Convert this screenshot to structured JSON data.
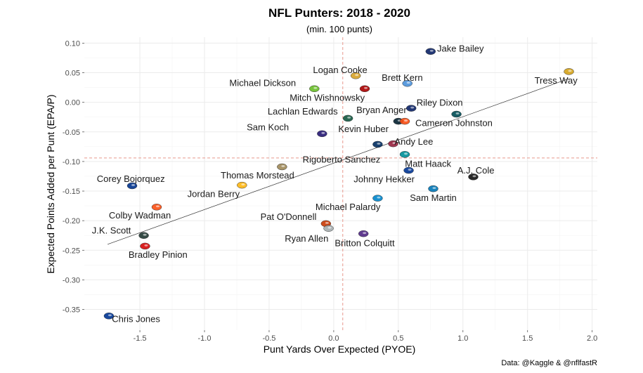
{
  "chart_data": {
    "type": "scatter",
    "title": "NFL Punters: 2018 - 2020",
    "subtitle": "(min. 100 punts)",
    "xlabel": "Punt Yards Over Expected (PYOE)",
    "ylabel": "Expected Points Added per Punt (EPA/P)",
    "caption": "Data: @Kaggle & @nflfastR",
    "xlim": [
      -1.93,
      2.04
    ],
    "ylim": [
      -0.385,
      0.11
    ],
    "xticks": [
      -1.5,
      -1.0,
      -0.5,
      0.0,
      0.5,
      1.0,
      1.5,
      2.0
    ],
    "xtick_labels": [
      "-1.5",
      "-1.0",
      "-0.5",
      "0.0",
      "0.5",
      "1.0",
      "1.5",
      "2.0"
    ],
    "yticks": [
      0.1,
      0.05,
      0.0,
      -0.05,
      -0.1,
      -0.15,
      -0.2,
      -0.25,
      -0.3,
      -0.35
    ],
    "ytick_labels": [
      "0.10",
      "0.05",
      "0.00",
      "-0.05",
      "-0.10",
      "-0.15",
      "-0.20",
      "-0.25",
      "-0.30",
      "-0.35"
    ],
    "grid": true,
    "ref_lines": {
      "vline_x": 0.07,
      "hline_y": -0.094,
      "color": "#e8998d"
    },
    "trend_line": {
      "x": [
        -1.75,
        1.82
      ],
      "y": [
        -0.24,
        0.04
      ]
    },
    "points": [
      {
        "name": "Jake Bailey",
        "x": 0.75,
        "y": 0.086,
        "color": "#0b2265",
        "lx": 0.8,
        "ly": 0.091,
        "anchor": "start"
      },
      {
        "name": "Logan Cooke",
        "x": 0.17,
        "y": 0.045,
        "color": "#d7a22a",
        "lx": 0.05,
        "ly": 0.055,
        "anchor": "middle"
      },
      {
        "name": "Brett Kern",
        "x": 0.57,
        "y": 0.032,
        "color": "#4b92db",
        "lx": 0.53,
        "ly": 0.042,
        "anchor": "middle"
      },
      {
        "name": "Tress Way",
        "x": 1.82,
        "y": 0.052,
        "color": "#d4a21a",
        "lx": 1.72,
        "ly": 0.037,
        "anchor": "middle"
      },
      {
        "name": "Michael Dickson",
        "x": -0.15,
        "y": 0.023,
        "color": "#69be28",
        "lx": -0.55,
        "ly": 0.033,
        "anchor": "middle"
      },
      {
        "name": "Mitch Wishnowsky",
        "x": 0.24,
        "y": 0.023,
        "color": "#aa0000",
        "lx": -0.05,
        "ly": 0.008,
        "anchor": "middle"
      },
      {
        "name": "Riley Dixon",
        "x": 0.6,
        "y": -0.01,
        "color": "#0b2265",
        "lx": 0.82,
        "ly": -0.0005,
        "anchor": "middle"
      },
      {
        "name": "Lachlan Edwards",
        "x": 0.11,
        "y": -0.027,
        "color": "#125740",
        "lx": -0.24,
        "ly": -0.015,
        "anchor": "middle"
      },
      {
        "name": "Bryan Anger",
        "x": 0.5,
        "y": -0.032,
        "color": "#03202f",
        "lx": 0.37,
        "ly": -0.013,
        "anchor": "middle"
      },
      {
        "name": "Cameron Johnston",
        "x": 0.95,
        "y": -0.02,
        "color": "#004c54",
        "lx": 0.93,
        "ly": -0.035,
        "anchor": "middle"
      },
      {
        "name": "Sam Koch",
        "x": -0.09,
        "y": -0.053,
        "color": "#241773",
        "lx": -0.51,
        "ly": -0.042,
        "anchor": "middle"
      },
      {
        "name": "Kevin Huber",
        "x": 0.55,
        "y": -0.032,
        "color": "#fb4f14",
        "lx": 0.23,
        "ly": -0.045,
        "anchor": "middle"
      },
      {
        "name": "Andy Lee",
        "x": 0.46,
        "y": -0.07,
        "color": "#97233f",
        "lx": 0.62,
        "ly": -0.0665,
        "anchor": "middle"
      },
      {
        "name": "Rigoberto Sanchez",
        "x": 0.34,
        "y": -0.071,
        "color": "#002c5f",
        "lx": 0.06,
        "ly": -0.0965,
        "anchor": "middle"
      },
      {
        "name": "Matt Haack",
        "x": 0.55,
        "y": -0.088,
        "color": "#008e97",
        "lx": 0.73,
        "ly": -0.1035,
        "anchor": "middle"
      },
      {
        "name": "A.J. Cole",
        "x": 1.08,
        "y": -0.126,
        "color": "#111111",
        "lx": 1.1,
        "ly": -0.115,
        "anchor": "middle"
      },
      {
        "name": "Thomas Morstead",
        "x": -0.4,
        "y": -0.109,
        "color": "#9f8958",
        "lx": -0.59,
        "ly": -0.123,
        "anchor": "middle"
      },
      {
        "name": "Johnny Hekker",
        "x": 0.58,
        "y": -0.115,
        "color": "#003594",
        "lx": 0.39,
        "ly": -0.13,
        "anchor": "middle"
      },
      {
        "name": "Corey Bojorquez",
        "x": -1.56,
        "y": -0.141,
        "color": "#00338d",
        "lx": -1.57,
        "ly": -0.129,
        "anchor": "middle"
      },
      {
        "name": "Jordan Berry",
        "x": -0.71,
        "y": -0.14,
        "color": "#ffb612",
        "lx": -0.93,
        "ly": -0.155,
        "anchor": "middle"
      },
      {
        "name": "Sam Martin",
        "x": 0.77,
        "y": -0.146,
        "color": "#0076b6",
        "lx": 0.77,
        "ly": -0.161,
        "anchor": "middle"
      },
      {
        "name": "Michael Palardy",
        "x": 0.34,
        "y": -0.162,
        "color": "#0085ca",
        "lx": 0.11,
        "ly": -0.1765,
        "anchor": "middle"
      },
      {
        "name": "Colby Wadman",
        "x": -1.37,
        "y": -0.177,
        "color": "#fb4f14",
        "lx": -1.5,
        "ly": -0.191,
        "anchor": "middle"
      },
      {
        "name": "Pat O'Donnell",
        "x": -0.06,
        "y": -0.205,
        "color": "#c83803",
        "lx": -0.35,
        "ly": -0.1935,
        "anchor": "middle"
      },
      {
        "name": "Ryan Allen",
        "x": -0.04,
        "y": -0.213,
        "color": "#a5acaf",
        "lx": -0.21,
        "ly": -0.23,
        "anchor": "middle"
      },
      {
        "name": "Britton Colquitt",
        "x": 0.23,
        "y": -0.222,
        "color": "#4f2683",
        "lx": 0.24,
        "ly": -0.238,
        "anchor": "middle"
      },
      {
        "name": "J.K. Scott",
        "x": -1.47,
        "y": -0.225,
        "color": "#203731",
        "lx": -1.72,
        "ly": -0.2165,
        "anchor": "middle"
      },
      {
        "name": "Bradley Pinion",
        "x": -1.46,
        "y": -0.243,
        "color": "#d50a0a",
        "lx": -1.36,
        "ly": -0.2575,
        "anchor": "middle"
      },
      {
        "name": "Chris Jones",
        "x": -1.74,
        "y": -0.361,
        "color": "#003594",
        "lx": -1.53,
        "ly": -0.366,
        "anchor": "middle"
      }
    ]
  }
}
